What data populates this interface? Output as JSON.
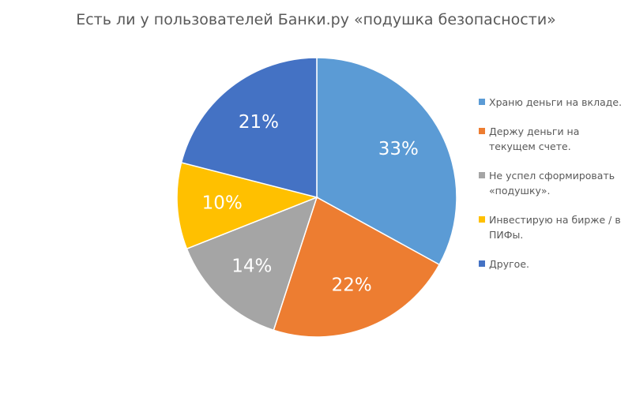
{
  "chart_data": {
    "type": "pie",
    "title": "Есть ли у пользователей Банки.ру «подушка безопасности»",
    "slices": [
      {
        "label": "Храню деньги на вкладе.",
        "value": 33,
        "display": "33%",
        "color": "#5b9bd5"
      },
      {
        "label": "Держу деньги на текущем счете.",
        "value": 22,
        "display": "22%",
        "color": "#ed7d31"
      },
      {
        "label": "Не успел сформировать «подушку».",
        "value": 14,
        "display": "14%",
        "color": "#a5a5a5"
      },
      {
        "label": "Инвестирую на бирже / в ПИФы.",
        "value": 10,
        "display": "10%",
        "color": "#ffc000"
      },
      {
        "label": "Другое.",
        "value": 21,
        "display": "21%",
        "color": "#4472c4"
      }
    ],
    "legend_position": "right"
  }
}
